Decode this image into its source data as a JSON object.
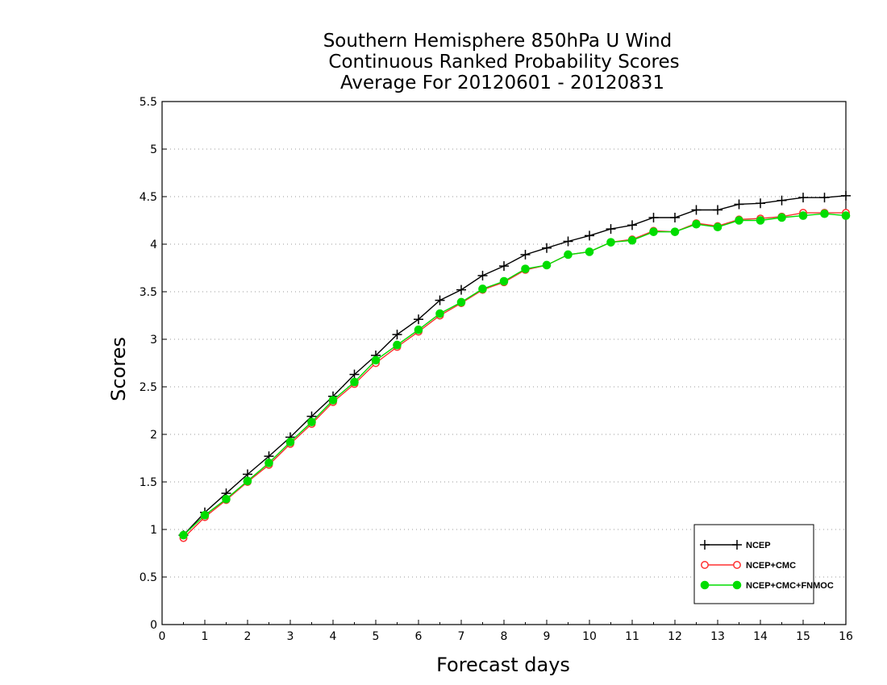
{
  "chart_data": {
    "type": "line",
    "title": "Southern Hemisphere 850hPa U Wind",
    "subtitle": "Continuous Ranked Probability Scores",
    "subtitle2": "Average For 20120601 - 20120831",
    "xlabel": "Forecast days",
    "ylabel": "Scores",
    "xlim": [
      0,
      16
    ],
    "ylim": [
      0,
      5.5
    ],
    "xticks": [
      "0",
      "1",
      "2",
      "3",
      "4",
      "5",
      "6",
      "7",
      "8",
      "9",
      "10",
      "11",
      "12",
      "13",
      "14",
      "15",
      "16"
    ],
    "yticks": [
      "0",
      "0.5",
      "1",
      "1.5",
      "2",
      "2.5",
      "3",
      "3.5",
      "4",
      "4.5",
      "5",
      "5.5"
    ],
    "grid": true,
    "legend_position": "bottom-right",
    "x": [
      0.5,
      1,
      1.5,
      2,
      2.5,
      3,
      3.5,
      4,
      4.5,
      5,
      5.5,
      6,
      6.5,
      7,
      7.5,
      8,
      8.5,
      9,
      9.5,
      10,
      10.5,
      11,
      11.5,
      12,
      12.5,
      13,
      13.5,
      14,
      14.5,
      15,
      15.5,
      16
    ],
    "series": [
      {
        "name": "NCEP",
        "color": "#000000",
        "marker": "plus",
        "values": [
          0.94,
          1.18,
          1.38,
          1.58,
          1.77,
          1.97,
          2.19,
          2.4,
          2.63,
          2.83,
          3.05,
          3.21,
          3.41,
          3.52,
          3.67,
          3.77,
          3.89,
          3.96,
          4.03,
          4.09,
          4.16,
          4.2,
          4.28,
          4.28,
          4.36,
          4.36,
          4.42,
          4.43,
          4.46,
          4.49,
          4.49,
          4.51
        ]
      },
      {
        "name": "NCEP+CMC",
        "color": "#ff3030",
        "marker": "open-circle",
        "values": [
          0.91,
          1.13,
          1.31,
          1.5,
          1.68,
          1.9,
          2.11,
          2.34,
          2.53,
          2.75,
          2.92,
          3.08,
          3.25,
          3.38,
          3.52,
          3.6,
          3.73,
          3.78,
          3.89,
          3.92,
          4.02,
          4.05,
          4.14,
          4.13,
          4.22,
          4.19,
          4.26,
          4.27,
          4.29,
          4.33,
          4.33,
          4.33
        ]
      },
      {
        "name": "NCEP+CMC+FNMOC",
        "color": "#00dd00",
        "marker": "filled-circle",
        "values": [
          0.94,
          1.15,
          1.32,
          1.51,
          1.7,
          1.92,
          2.13,
          2.36,
          2.55,
          2.78,
          2.94,
          3.1,
          3.27,
          3.39,
          3.53,
          3.61,
          3.74,
          3.78,
          3.89,
          3.92,
          4.02,
          4.04,
          4.13,
          4.13,
          4.21,
          4.18,
          4.25,
          4.25,
          4.28,
          4.3,
          4.32,
          4.3
        ]
      }
    ]
  }
}
